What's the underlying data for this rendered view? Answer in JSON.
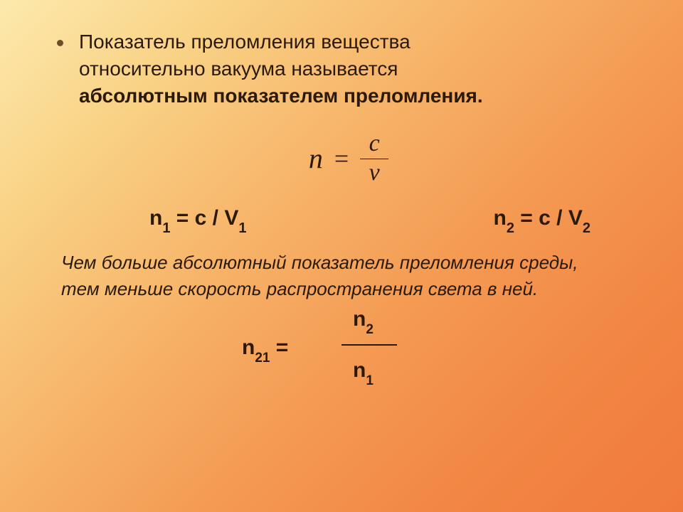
{
  "definition": {
    "line1": "Показатель преломления вещества",
    "line2": "относительно вакуума называется",
    "line3_bold": "абсолютным показателем преломления."
  },
  "main_formula": {
    "lhs": "n",
    "numerator": "c",
    "denominator": "v"
  },
  "sub_formulas": {
    "left": {
      "n": "n",
      "sub1": "1",
      "eq": " = ",
      "c": "c",
      "slash": " / ",
      "v": "V",
      "sub2": "1"
    },
    "right": {
      "n": "n",
      "sub1": "2",
      "eq": " = ",
      "c": "c",
      "slash": " / ",
      "v": "V",
      "sub2": "2"
    }
  },
  "note": {
    "line1": "Чем больше абсолютный показатель преломления среды,",
    "line2": "тем меньше скорость распространения света в ней."
  },
  "relative_formula": {
    "lhs_n": "n",
    "lhs_sub": "21",
    "eq": " = ",
    "num_n": "n",
    "num_sub": "2",
    "den_n": "n",
    "den_sub": "1"
  },
  "style": {
    "body_fontsize": 28,
    "formula_fontsize": 36,
    "sub_formula_fontsize": 30,
    "note_fontsize": 26,
    "text_color": "#2b1a0a",
    "gradient_from": "#fde9ad",
    "gradient_to": "#f07a3c"
  }
}
